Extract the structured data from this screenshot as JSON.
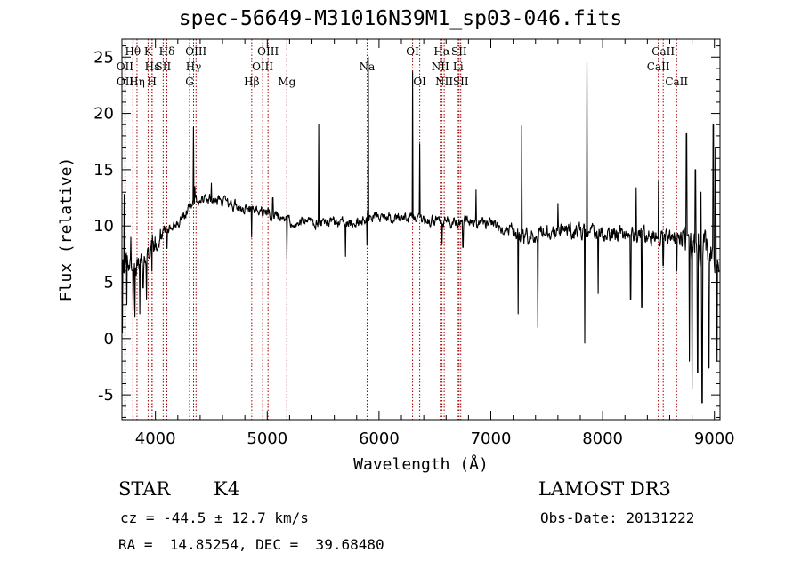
{
  "chart_data": {
    "type": "line",
    "title": "spec-56649-M31016N39M1_sp03-046.fits",
    "xlabel": "Wavelength (Å)",
    "ylabel": "Flux (relative)",
    "xlim": [
      3700,
      9050
    ],
    "ylim": [
      -7.2,
      26.6
    ],
    "xticks": [
      4000,
      5000,
      6000,
      7000,
      8000,
      9000
    ],
    "yticks": [
      -5,
      0,
      5,
      10,
      15,
      20,
      25
    ],
    "spectrum": {
      "seed": 56649,
      "anchors": [
        [
          3700,
          6.5
        ],
        [
          3800,
          6.0
        ],
        [
          3900,
          7.0
        ],
        [
          4000,
          8.5
        ],
        [
          4100,
          9.6
        ],
        [
          4200,
          10.3
        ],
        [
          4300,
          11.5
        ],
        [
          4400,
          12.4
        ],
        [
          4500,
          12.4
        ],
        [
          4600,
          12.1
        ],
        [
          4700,
          11.9
        ],
        [
          4800,
          11.5
        ],
        [
          4900,
          11.4
        ],
        [
          5000,
          11.1
        ],
        [
          5100,
          10.8
        ],
        [
          5200,
          10.4
        ],
        [
          5400,
          10.3
        ],
        [
          5600,
          10.2
        ],
        [
          5800,
          10.4
        ],
        [
          6000,
          10.8
        ],
        [
          6200,
          10.7
        ],
        [
          6400,
          10.5
        ],
        [
          6600,
          10.3
        ],
        [
          6800,
          10.4
        ],
        [
          7000,
          10.2
        ],
        [
          7200,
          9.5
        ],
        [
          7300,
          8.8
        ],
        [
          7400,
          9.3
        ],
        [
          7600,
          9.6
        ],
        [
          7800,
          9.4
        ],
        [
          8000,
          9.4
        ],
        [
          8200,
          9.1
        ],
        [
          8400,
          9.2
        ],
        [
          8600,
          9.0
        ],
        [
          8700,
          9.0
        ],
        [
          8800,
          8.0
        ],
        [
          8900,
          8.0
        ],
        [
          9000,
          7.5
        ],
        [
          9050,
          7.5
        ]
      ],
      "features": [
        [
          3705,
          0.5
        ],
        [
          3720,
          12.8
        ],
        [
          3745,
          3.0
        ],
        [
          3780,
          9.0
        ],
        [
          3800,
          2.5
        ],
        [
          3815,
          1.9
        ],
        [
          3840,
          6.5
        ],
        [
          3860,
          2.2
        ],
        [
          3890,
          4.5
        ],
        [
          3920,
          3.5
        ],
        [
          3968,
          6.0
        ],
        [
          4102,
          8.0
        ],
        [
          4340,
          18.8
        ],
        [
          4352,
          13.5
        ],
        [
          4500,
          13.8
        ],
        [
          4861,
          9.0
        ],
        [
          5050,
          12.5
        ],
        [
          5175,
          7.1
        ],
        [
          5460,
          19.0
        ],
        [
          5700,
          7.3
        ],
        [
          5893,
          8.3
        ],
        [
          5905,
          25.0
        ],
        [
          6300,
          23.7
        ],
        [
          6364,
          17.3
        ],
        [
          6563,
          8.4
        ],
        [
          6750,
          8.1
        ],
        [
          6868,
          13.2
        ],
        [
          7245,
          2.2
        ],
        [
          7275,
          18.9
        ],
        [
          7420,
          1.0
        ],
        [
          7600,
          12.0
        ],
        [
          7840,
          -0.4
        ],
        [
          7860,
          24.5
        ],
        [
          7960,
          4.0
        ],
        [
          8250,
          3.5
        ],
        [
          8300,
          13.4
        ],
        [
          8350,
          2.8
        ],
        [
          8500,
          14.0
        ],
        [
          8542,
          6.5
        ],
        [
          8662,
          6.0
        ],
        [
          8750,
          18.2
        ],
        [
          8775,
          -2.0
        ],
        [
          8800,
          -4.5
        ],
        [
          8830,
          15.0
        ],
        [
          8850,
          -3.0
        ],
        [
          8880,
          13.0
        ],
        [
          8890,
          -5.7
        ],
        [
          8920,
          9.5
        ],
        [
          8950,
          -2.6
        ],
        [
          8990,
          19.0
        ],
        [
          9010,
          17.0
        ],
        [
          9025,
          -2.0
        ]
      ]
    },
    "lines": [
      {
        "label": "Hθ",
        "wl": 3798,
        "row": 0
      },
      {
        "label": "OII",
        "wl": 3727,
        "row": 1
      },
      {
        "label": "OII",
        "wl": 3729,
        "row": 2
      },
      {
        "label": "K",
        "wl": 3934,
        "row": 0
      },
      {
        "label": "Hε",
        "wl": 3970,
        "row": 1
      },
      {
        "label": "Hη",
        "wl": 3835,
        "row": 2
      },
      {
        "label": "Hδ",
        "wl": 4102,
        "row": 0
      },
      {
        "label": "SII",
        "wl": 4069,
        "row": 1
      },
      {
        "label": "H",
        "wl": 3969,
        "row": 2
      },
      {
        "label": "OIII",
        "wl": 4363,
        "row": 0
      },
      {
        "label": "Hγ",
        "wl": 4341,
        "row": 1
      },
      {
        "label": "G",
        "wl": 4305,
        "row": 2
      },
      {
        "label": "OIII",
        "wl": 5007,
        "row": 0
      },
      {
        "label": "OIII",
        "wl": 4959,
        "row": 1
      },
      {
        "label": "Hβ",
        "wl": 4861,
        "row": 2
      },
      {
        "label": "Mg",
        "wl": 5175,
        "row": 2
      },
      {
        "label": "Na",
        "wl": 5893,
        "row": 1
      },
      {
        "label": "OI",
        "wl": 6300,
        "row": 0
      },
      {
        "label": "OI",
        "wl": 6364,
        "row": 2
      },
      {
        "label": "Hα",
        "wl": 6563,
        "row": 0
      },
      {
        "label": "SII",
        "wl": 6716,
        "row": 0
      },
      {
        "label": "NII",
        "wl": 6548,
        "row": 1
      },
      {
        "label": "Li",
        "wl": 6708,
        "row": 1
      },
      {
        "label": "NII",
        "wl": 6583,
        "row": 2
      },
      {
        "label": "SII",
        "wl": 6731,
        "row": 2
      },
      {
        "label": "CaII",
        "wl": 8542,
        "row": 0
      },
      {
        "label": "CaII",
        "wl": 8498,
        "row": 1
      },
      {
        "label": "CaII",
        "wl": 8662,
        "row": 2
      }
    ],
    "colors": {
      "line_marker": "#a00000",
      "spectrum": "#000000",
      "axes": "#000000"
    }
  },
  "info": {
    "object_class": "STAR",
    "subclass": "K4",
    "survey": "LAMOST DR3",
    "redshift": "cz = -44.5 ± 12.7 km/s",
    "obs_date": "Obs-Date: 20131222",
    "coords": "RA =  14.85254, DEC =  39.68480"
  }
}
